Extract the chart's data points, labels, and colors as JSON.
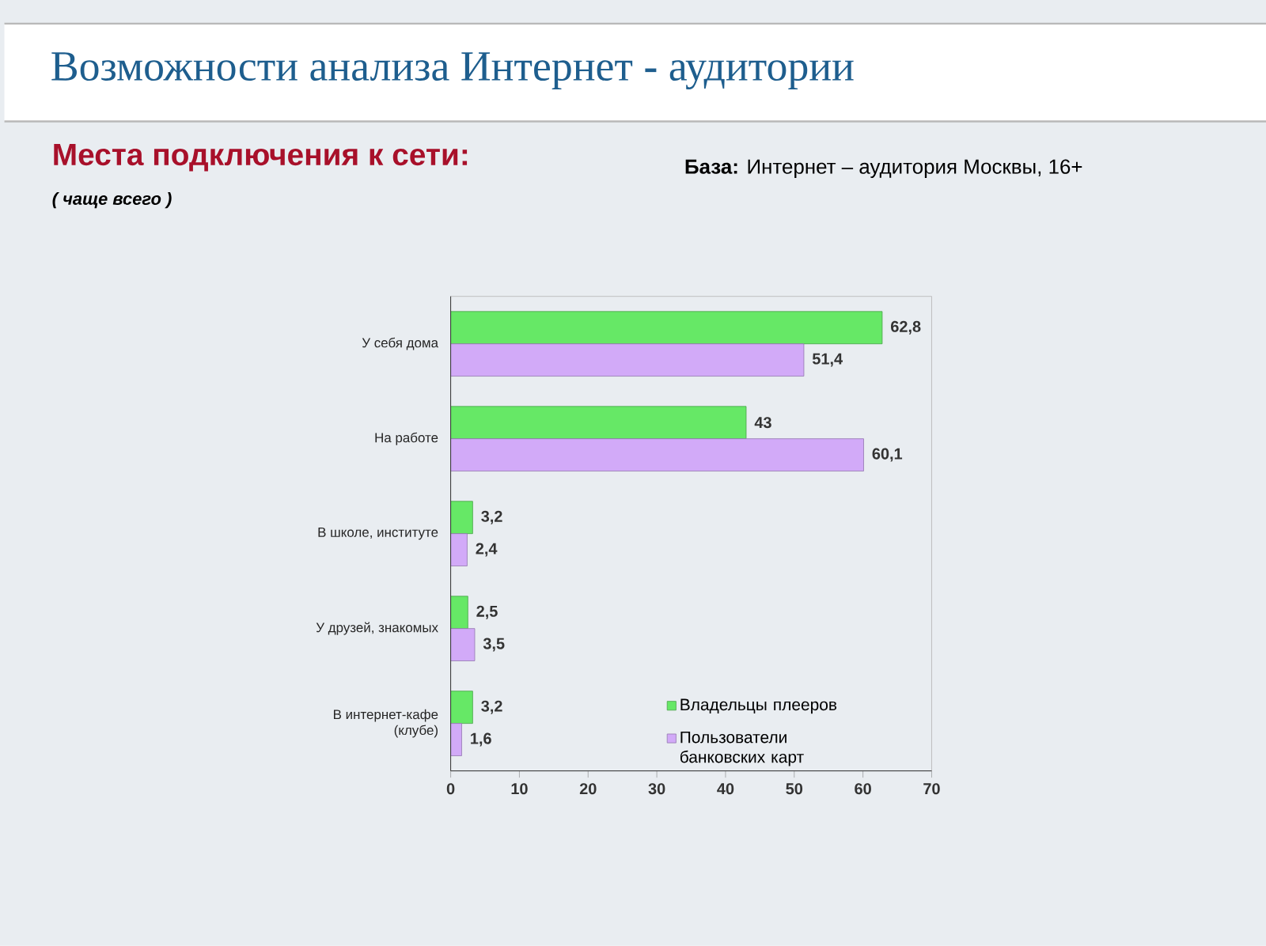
{
  "chart_data": {
    "type": "bar",
    "orientation": "horizontal",
    "title": "Возможности анализа Интернет **-** аудитории",
    "subtitle": "Места подключения к сети:",
    "annotations": [
      "( чаще всего )",
      "**База:** Интернет – аудитория Москвы, 16+"
    ],
    "categories": [
      "У себя дома",
      "На работе",
      "В школе, институте",
      "У друзей, знакомых",
      "В интернет-кафе (клубе)"
    ],
    "series": [
      {
        "name": "Владельцы плееров",
        "color": "#66e866",
        "values": [
          62.8,
          43,
          3.2,
          2.5,
          3.2
        ],
        "value_labels": [
          "62,8",
          "43",
          "3,2",
          "2,5",
          "3,2"
        ]
      },
      {
        "name": "Пользователи банковских карт",
        "color": "#d2aaf8",
        "values": [
          51.4,
          60.1,
          2.4,
          3.5,
          1.6
        ],
        "value_labels": [
          "51,4",
          "60,1",
          "2,4",
          "3,5",
          "1,6"
        ]
      }
    ],
    "xlim": [
      0,
      70
    ],
    "xticks": [
      0,
      10,
      20,
      30,
      40,
      50,
      60,
      70
    ],
    "legend": "bottom right"
  }
}
